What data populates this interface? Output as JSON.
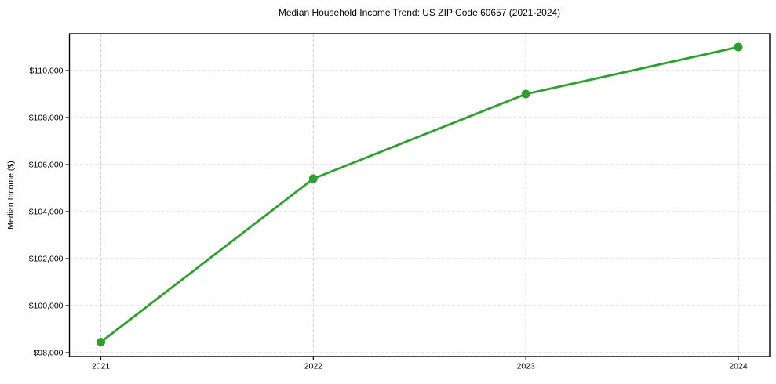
{
  "chart_data": {
    "type": "line",
    "title": "Median Household Income Trend: US ZIP Code 60657 (2021-2024)",
    "xlabel": "",
    "ylabel": "Median Income ($)",
    "categories": [
      "2021",
      "2022",
      "2023",
      "2024"
    ],
    "series": [
      {
        "name": "Median Household Income",
        "values": [
          98450,
          105400,
          109000,
          111000
        ]
      }
    ],
    "yticks": [
      98000,
      100000,
      102000,
      104000,
      106000,
      108000,
      110000
    ],
    "ytick_labels": [
      "$98,000",
      "$100,000",
      "$102,000",
      "$104,000",
      "$106,000",
      "$108,000",
      "$110,000"
    ],
    "ylim": [
      97833,
      111567
    ],
    "grid": true,
    "grid_style": "dashed",
    "legend_position": "none",
    "line_color": "#2ca02c",
    "marker_color": "#2ca02c",
    "grid_color": "#cfcfcf",
    "axis_color": "#000000",
    "background_color": "#ffffff"
  }
}
